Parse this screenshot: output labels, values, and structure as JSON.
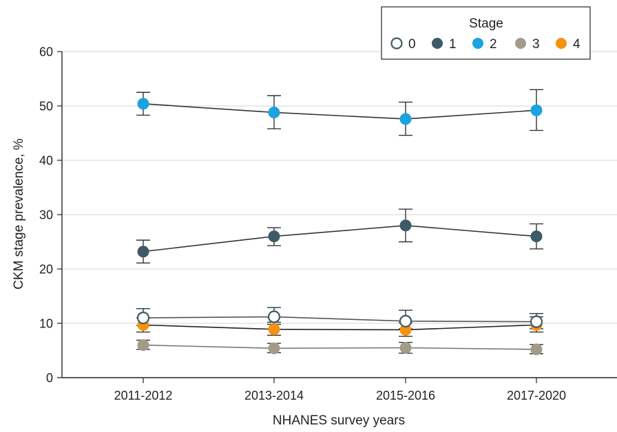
{
  "chart_data": {
    "type": "line",
    "xlabel": "NHANES survey years",
    "ylabel": "CKM stage prevalence, %",
    "categories": [
      "2011-2012",
      "2013-2014",
      "2015-2016",
      "2017-2020"
    ],
    "ylim": [
      0,
      60
    ],
    "yticks": [
      0,
      10,
      20,
      30,
      40,
      50,
      60
    ],
    "grid": true,
    "legend": {
      "title": "Stage",
      "placement": "top-right"
    },
    "series": [
      {
        "name": "0",
        "color": "#3d5a66",
        "fill": "#ffffff",
        "line_color": "#555555",
        "values": [
          11.0,
          11.2,
          10.4,
          10.3
        ],
        "lower": [
          9.6,
          9.8,
          9.0,
          9.0
        ],
        "upper": [
          12.7,
          12.9,
          12.4,
          11.8
        ]
      },
      {
        "name": "1",
        "color": "#3d5a66",
        "fill": "#3d5a66",
        "line_color": "#333333",
        "values": [
          23.2,
          26.0,
          28.0,
          26.0
        ],
        "lower": [
          21.1,
          24.3,
          25.0,
          23.7
        ],
        "upper": [
          25.3,
          27.6,
          31.0,
          28.3
        ]
      },
      {
        "name": "2",
        "color": "#1aa3e0",
        "fill": "#1aa3e0",
        "line_color": "#333333",
        "values": [
          50.4,
          48.8,
          47.6,
          49.2
        ],
        "lower": [
          48.3,
          45.8,
          44.6,
          45.5
        ],
        "upper": [
          52.5,
          51.9,
          50.7,
          53.0
        ]
      },
      {
        "name": "3",
        "color": "#a39a8a",
        "fill": "#a39a8a",
        "line_color": "#777777",
        "values": [
          6.0,
          5.4,
          5.5,
          5.2
        ],
        "lower": [
          5.2,
          4.6,
          4.5,
          4.4
        ],
        "upper": [
          6.9,
          6.3,
          6.5,
          6.1
        ]
      },
      {
        "name": "4",
        "color": "#f5920e",
        "fill": "#f5920e",
        "line_color": "#222222",
        "values": [
          9.7,
          8.9,
          8.8,
          9.7
        ],
        "lower": [
          8.4,
          7.8,
          7.6,
          8.4
        ],
        "upper": [
          11.0,
          10.2,
          10.1,
          11.2
        ]
      }
    ]
  }
}
